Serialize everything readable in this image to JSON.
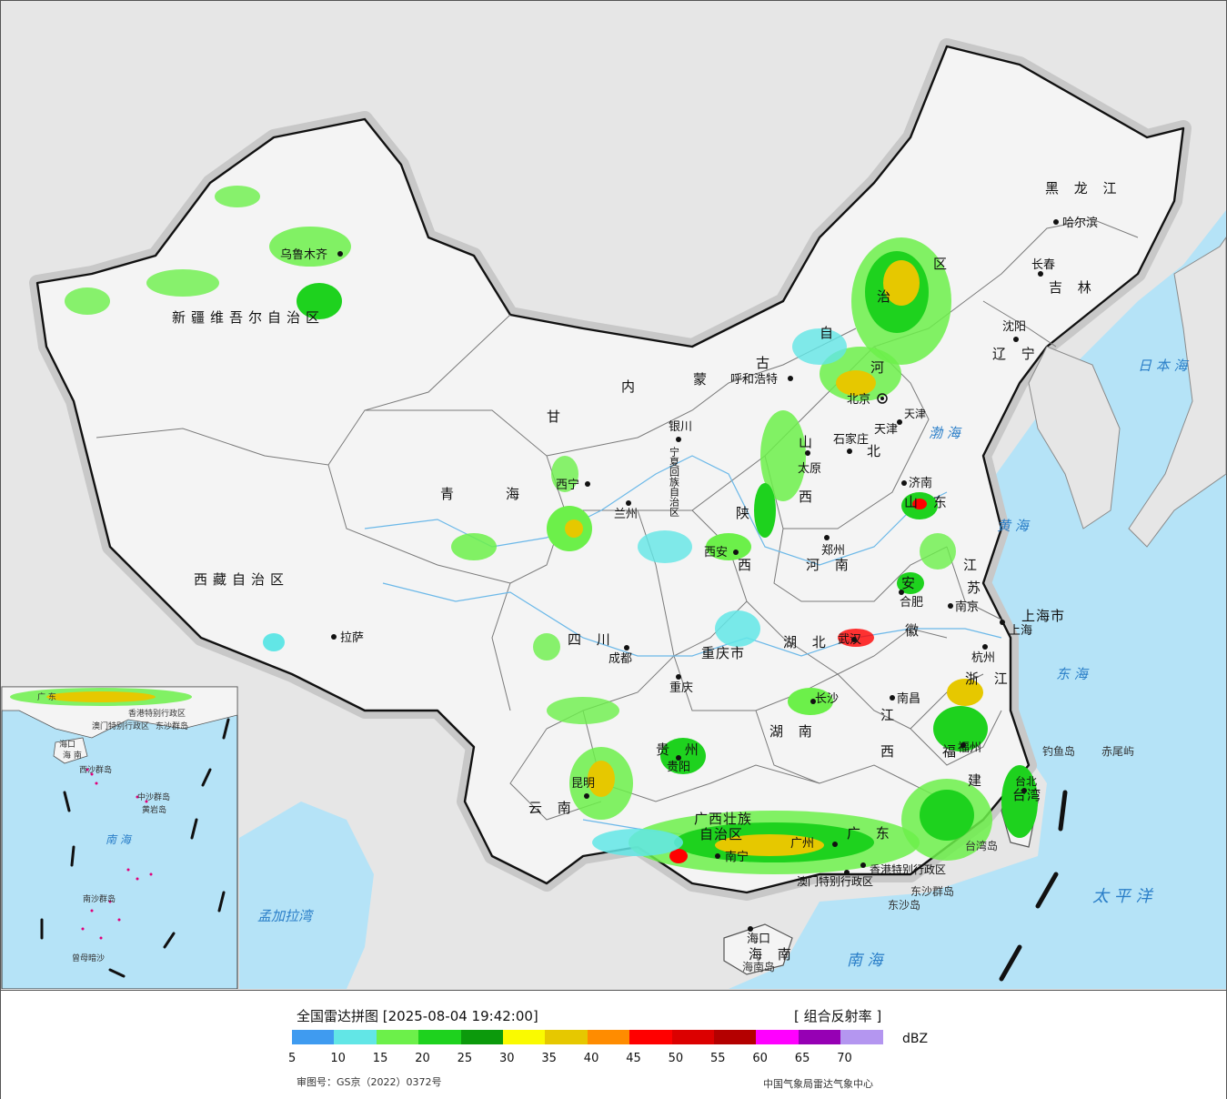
{
  "map": {
    "provinces": [
      {
        "key": "xj",
        "label": "新疆维吾尔自治区"
      },
      {
        "key": "xz",
        "label": "西藏自治区"
      },
      {
        "key": "qh1",
        "label": "青"
      },
      {
        "key": "qh2",
        "label": "海"
      },
      {
        "key": "gs",
        "label": "甘"
      },
      {
        "key": "nm1",
        "label": "内"
      },
      {
        "key": "nm2",
        "label": "蒙"
      },
      {
        "key": "nm3",
        "label": "古"
      },
      {
        "key": "nm4",
        "label": "自"
      },
      {
        "key": "nm5",
        "label": "治"
      },
      {
        "key": "nm6",
        "label": "区"
      },
      {
        "key": "hlj",
        "label": "黑 龙 江"
      },
      {
        "key": "jl",
        "label": "吉 林"
      },
      {
        "key": "ln",
        "label": "辽 宁"
      },
      {
        "key": "hb1",
        "label": "河"
      },
      {
        "key": "hb2",
        "label": "北"
      },
      {
        "key": "sx1",
        "label": "山"
      },
      {
        "key": "sx2",
        "label": "西"
      },
      {
        "key": "sd",
        "label": "山 东"
      },
      {
        "key": "hn1",
        "label": "河 南"
      },
      {
        "key": "js1",
        "label": "江"
      },
      {
        "key": "js2",
        "label": "苏"
      },
      {
        "key": "ah1",
        "label": "安"
      },
      {
        "key": "ah2",
        "label": "徽"
      },
      {
        "key": "shx1",
        "label": "陕"
      },
      {
        "key": "shx2",
        "label": "西"
      },
      {
        "key": "nx",
        "label": "宁夏回族自治区"
      },
      {
        "key": "sc",
        "label": "四 川"
      },
      {
        "key": "cq",
        "label": "重庆市"
      },
      {
        "key": "hub",
        "label": "湖 北"
      },
      {
        "key": "hun",
        "label": "湖 南"
      },
      {
        "key": "zj",
        "label": "浙 江"
      },
      {
        "key": "jx1",
        "label": "江"
      },
      {
        "key": "jx2",
        "label": "西"
      },
      {
        "key": "fj1",
        "label": "福"
      },
      {
        "key": "fj2",
        "label": "建"
      },
      {
        "key": "gz",
        "label": "贵 州"
      },
      {
        "key": "yn",
        "label": "云 南"
      },
      {
        "key": "gx1",
        "label": "广西壮族"
      },
      {
        "key": "gx2",
        "label": "自治区"
      },
      {
        "key": "gd",
        "label": "广 东"
      },
      {
        "key": "hainan",
        "label": "海 南"
      },
      {
        "key": "tw",
        "label": "台湾"
      },
      {
        "key": "sh",
        "label": "上海市"
      },
      {
        "key": "tj",
        "label": "天津"
      }
    ],
    "cities": [
      {
        "key": "wlmq",
        "label": "乌鲁木齐"
      },
      {
        "key": "ls",
        "label": "拉萨"
      },
      {
        "key": "xn",
        "label": "西宁"
      },
      {
        "key": "lz",
        "label": "兰州"
      },
      {
        "key": "yc",
        "label": "银川"
      },
      {
        "key": "hhht",
        "label": "呼和浩特"
      },
      {
        "key": "bj",
        "label": "北京"
      },
      {
        "key": "tj",
        "label": "天津"
      },
      {
        "key": "sjz",
        "label": "石家庄"
      },
      {
        "key": "ty",
        "label": "太原"
      },
      {
        "key": "jn",
        "label": "济南"
      },
      {
        "key": "zz",
        "label": "郑州"
      },
      {
        "key": "xa",
        "label": "西安"
      },
      {
        "key": "hrb",
        "label": "哈尔滨"
      },
      {
        "key": "cc",
        "label": "长春"
      },
      {
        "key": "sy",
        "label": "沈阳"
      },
      {
        "key": "nj",
        "label": "南京"
      },
      {
        "key": "hf",
        "label": "合肥"
      },
      {
        "key": "sh",
        "label": "上海"
      },
      {
        "key": "hz",
        "label": "杭州"
      },
      {
        "key": "wh",
        "label": "武汉"
      },
      {
        "key": "cs",
        "label": "长沙"
      },
      {
        "key": "nc",
        "label": "南昌"
      },
      {
        "key": "fz",
        "label": "福州"
      },
      {
        "key": "cd",
        "label": "成都"
      },
      {
        "key": "cq",
        "label": "重庆"
      },
      {
        "key": "gy",
        "label": "贵阳"
      },
      {
        "key": "km",
        "label": "昆明"
      },
      {
        "key": "nn",
        "label": "南宁"
      },
      {
        "key": "gz",
        "label": "广州"
      },
      {
        "key": "hk",
        "label": "海口"
      },
      {
        "key": "tb",
        "label": "台北"
      },
      {
        "key": "xg",
        "label": "香港特别行政区"
      },
      {
        "key": "am",
        "label": "澳门特别行政区"
      }
    ],
    "seas": [
      {
        "key": "rbh",
        "label": "日 本 海"
      },
      {
        "key": "bh",
        "label": "渤 海"
      },
      {
        "key": "hh",
        "label": "黄 海"
      },
      {
        "key": "dh",
        "label": "东 海"
      },
      {
        "key": "tpy",
        "label": "太 平 洋"
      },
      {
        "key": "nh",
        "label": "南 海"
      },
      {
        "key": "mjl",
        "label": "孟加拉湾"
      }
    ],
    "islands": [
      {
        "key": "dyd",
        "label": "钓鱼岛"
      },
      {
        "key": "cwy",
        "label": "赤尾屿"
      },
      {
        "key": "twd",
        "label": "台湾岛"
      },
      {
        "key": "dsqd",
        "label": "东沙群岛"
      },
      {
        "key": "dsd",
        "label": "东沙岛"
      },
      {
        "key": "hnd",
        "label": "海南岛"
      }
    ],
    "inset": {
      "labels": [
        {
          "key": "i_gd",
          "label": "广 东"
        },
        {
          "key": "i_xg",
          "label": "香港特别行政区"
        },
        {
          "key": "i_am",
          "label": "澳门特别行政区"
        },
        {
          "key": "i_dsqd",
          "label": "东沙群岛"
        },
        {
          "key": "i_hk",
          "label": "海口"
        },
        {
          "key": "i_hn",
          "label": "海 南"
        },
        {
          "key": "i_xsqd",
          "label": "西沙群岛"
        },
        {
          "key": "i_zsqd",
          "label": "中沙群岛"
        },
        {
          "key": "i_hyd",
          "label": "黄岩岛"
        },
        {
          "key": "i_nh",
          "label": "南 海"
        },
        {
          "key": "i_nsqd",
          "label": "南沙群岛"
        },
        {
          "key": "i_zma",
          "label": "曾母暗沙"
        }
      ]
    }
  },
  "legend": {
    "title": "全国雷达拼图 [2025-08-04 19:42:00]",
    "product": "[ 组合反射率 ]",
    "unit": "dBZ",
    "scale_colors": [
      "#3f9bf0",
      "#62e6e6",
      "#6cf04a",
      "#1ed21e",
      "#0c9a0c",
      "#fafa00",
      "#e6c800",
      "#ff8c00",
      "#ff0000",
      "#dc0000",
      "#b40000",
      "#ff00ff",
      "#9600b4",
      "#b496f0"
    ],
    "scale_labels": [
      "5",
      "10",
      "15",
      "20",
      "25",
      "30",
      "35",
      "40",
      "45",
      "50",
      "55",
      "60",
      "65",
      "70"
    ],
    "approval": "审图号：GS京（2022）0372号",
    "source": "中国气象局雷达气象中心"
  },
  "colors": {
    "sea": "#b5e3f7",
    "land": "#f4f4f4",
    "outside": "#e6e6e6",
    "border": "#111111"
  }
}
